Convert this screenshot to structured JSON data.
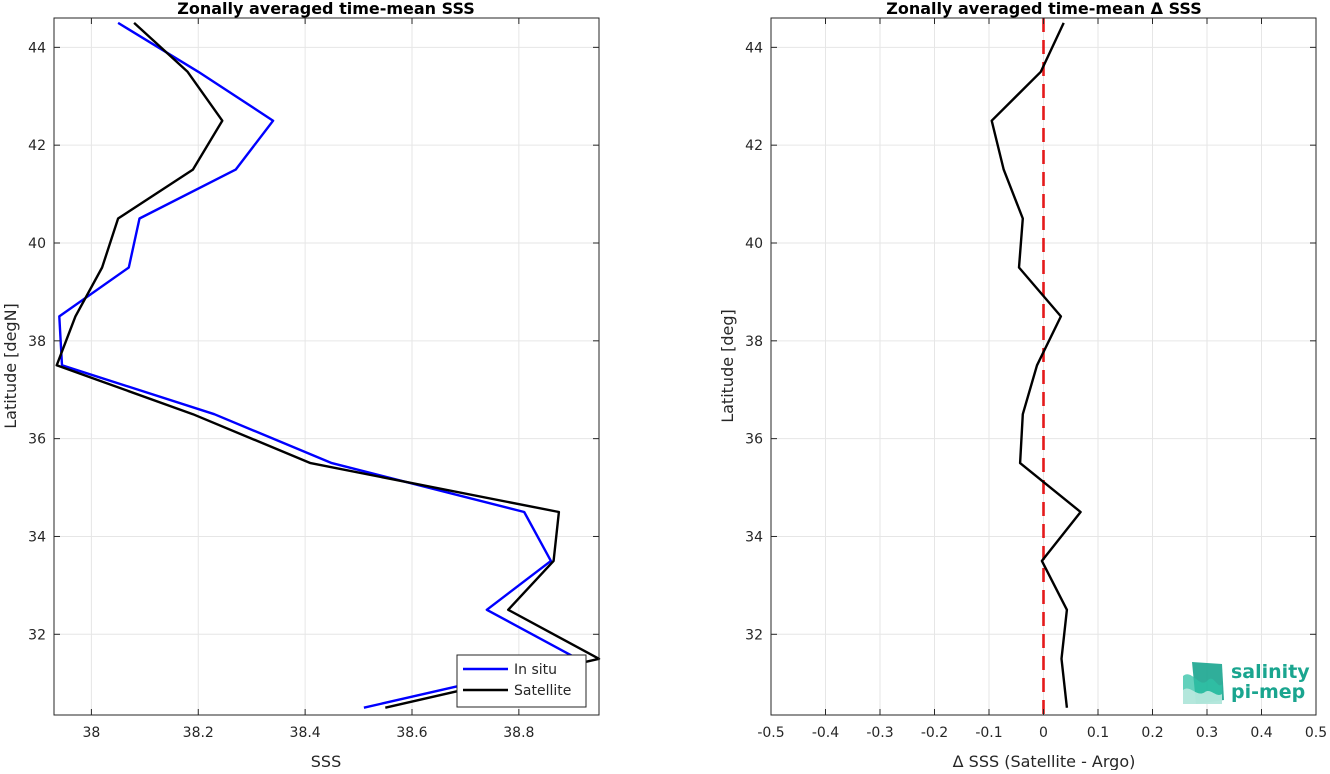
{
  "chart_data": [
    {
      "type": "line",
      "title": "Zonally averaged time-mean SSS",
      "xlabel": "SSS",
      "ylabel": "Latitude [degN]",
      "xlim": [
        37.93,
        38.95
      ],
      "ylim": [
        30.35,
        44.6
      ],
      "xticks": [
        38,
        38.2,
        38.4,
        38.6,
        38.8
      ],
      "xtick_labels": [
        "38",
        "38.2",
        "38.4",
        "38.6",
        "38.8"
      ],
      "yticks": [
        32,
        34,
        36,
        38,
        40,
        42,
        44
      ],
      "ytick_labels": [
        "32",
        "34",
        "36",
        "38",
        "40",
        "42",
        "44"
      ],
      "grid": true,
      "legend": "bottom-right",
      "series": [
        {
          "name": "In situ",
          "color": "#0000ff",
          "x": [
            38.05,
            38.2,
            38.34,
            38.27,
            38.09,
            38.07,
            37.94,
            37.945,
            38.23,
            38.45,
            38.81,
            38.86,
            38.74,
            38.91,
            38.51
          ],
          "y": [
            44.5,
            43.5,
            42.5,
            41.5,
            40.5,
            39.5,
            38.5,
            37.5,
            36.5,
            35.5,
            34.5,
            33.5,
            32.5,
            31.5,
            30.5
          ]
        },
        {
          "name": "Satellite",
          "color": "#000000",
          "x": [
            38.08,
            38.18,
            38.245,
            38.19,
            38.05,
            38.02,
            37.97,
            37.935,
            38.19,
            38.41,
            38.875,
            38.865,
            38.78,
            38.95,
            38.55
          ],
          "y": [
            44.5,
            43.5,
            42.5,
            41.5,
            40.5,
            39.5,
            38.5,
            37.5,
            36.5,
            35.5,
            34.5,
            33.5,
            32.5,
            31.5,
            30.5
          ]
        }
      ]
    },
    {
      "type": "line",
      "title": "Zonally averaged time-mean Δ SSS",
      "xlabel": "Δ SSS (Satellite - Argo)",
      "ylabel": "Latitude [deg]",
      "xlim": [
        -0.5,
        0.5
      ],
      "ylim": [
        30.35,
        44.6
      ],
      "xticks": [
        -0.5,
        -0.4,
        -0.3,
        -0.2,
        -0.1,
        0,
        0.1,
        0.2,
        0.3,
        0.4,
        0.5
      ],
      "xtick_labels": [
        "-0.5",
        "-0.4",
        "-0.3",
        "-0.2",
        "-0.1",
        "0",
        "0.1",
        "0.2",
        "0.3",
        "0.4",
        "0.5"
      ],
      "yticks": [
        32,
        34,
        36,
        38,
        40,
        42,
        44
      ],
      "ytick_labels": [
        "32",
        "34",
        "36",
        "38",
        "40",
        "42",
        "44"
      ],
      "grid": true,
      "reference_line": {
        "x": 0,
        "color": "#e41a1c",
        "style": "dashed"
      },
      "series": [
        {
          "color": "#000000",
          "x": [
            0.037,
            -0.005,
            -0.095,
            -0.073,
            -0.038,
            -0.045,
            0.032,
            -0.012,
            -0.038,
            -0.043,
            0.068,
            -0.003,
            0.043,
            0.033,
            0.043
          ],
          "y": [
            44.5,
            43.5,
            42.5,
            41.5,
            40.5,
            39.5,
            38.5,
            37.5,
            36.5,
            35.5,
            34.5,
            33.5,
            32.5,
            31.5,
            30.5
          ]
        }
      ]
    }
  ],
  "logo": {
    "line1": "salinity",
    "line2": "pi-mep",
    "color": "#1aa58f"
  }
}
